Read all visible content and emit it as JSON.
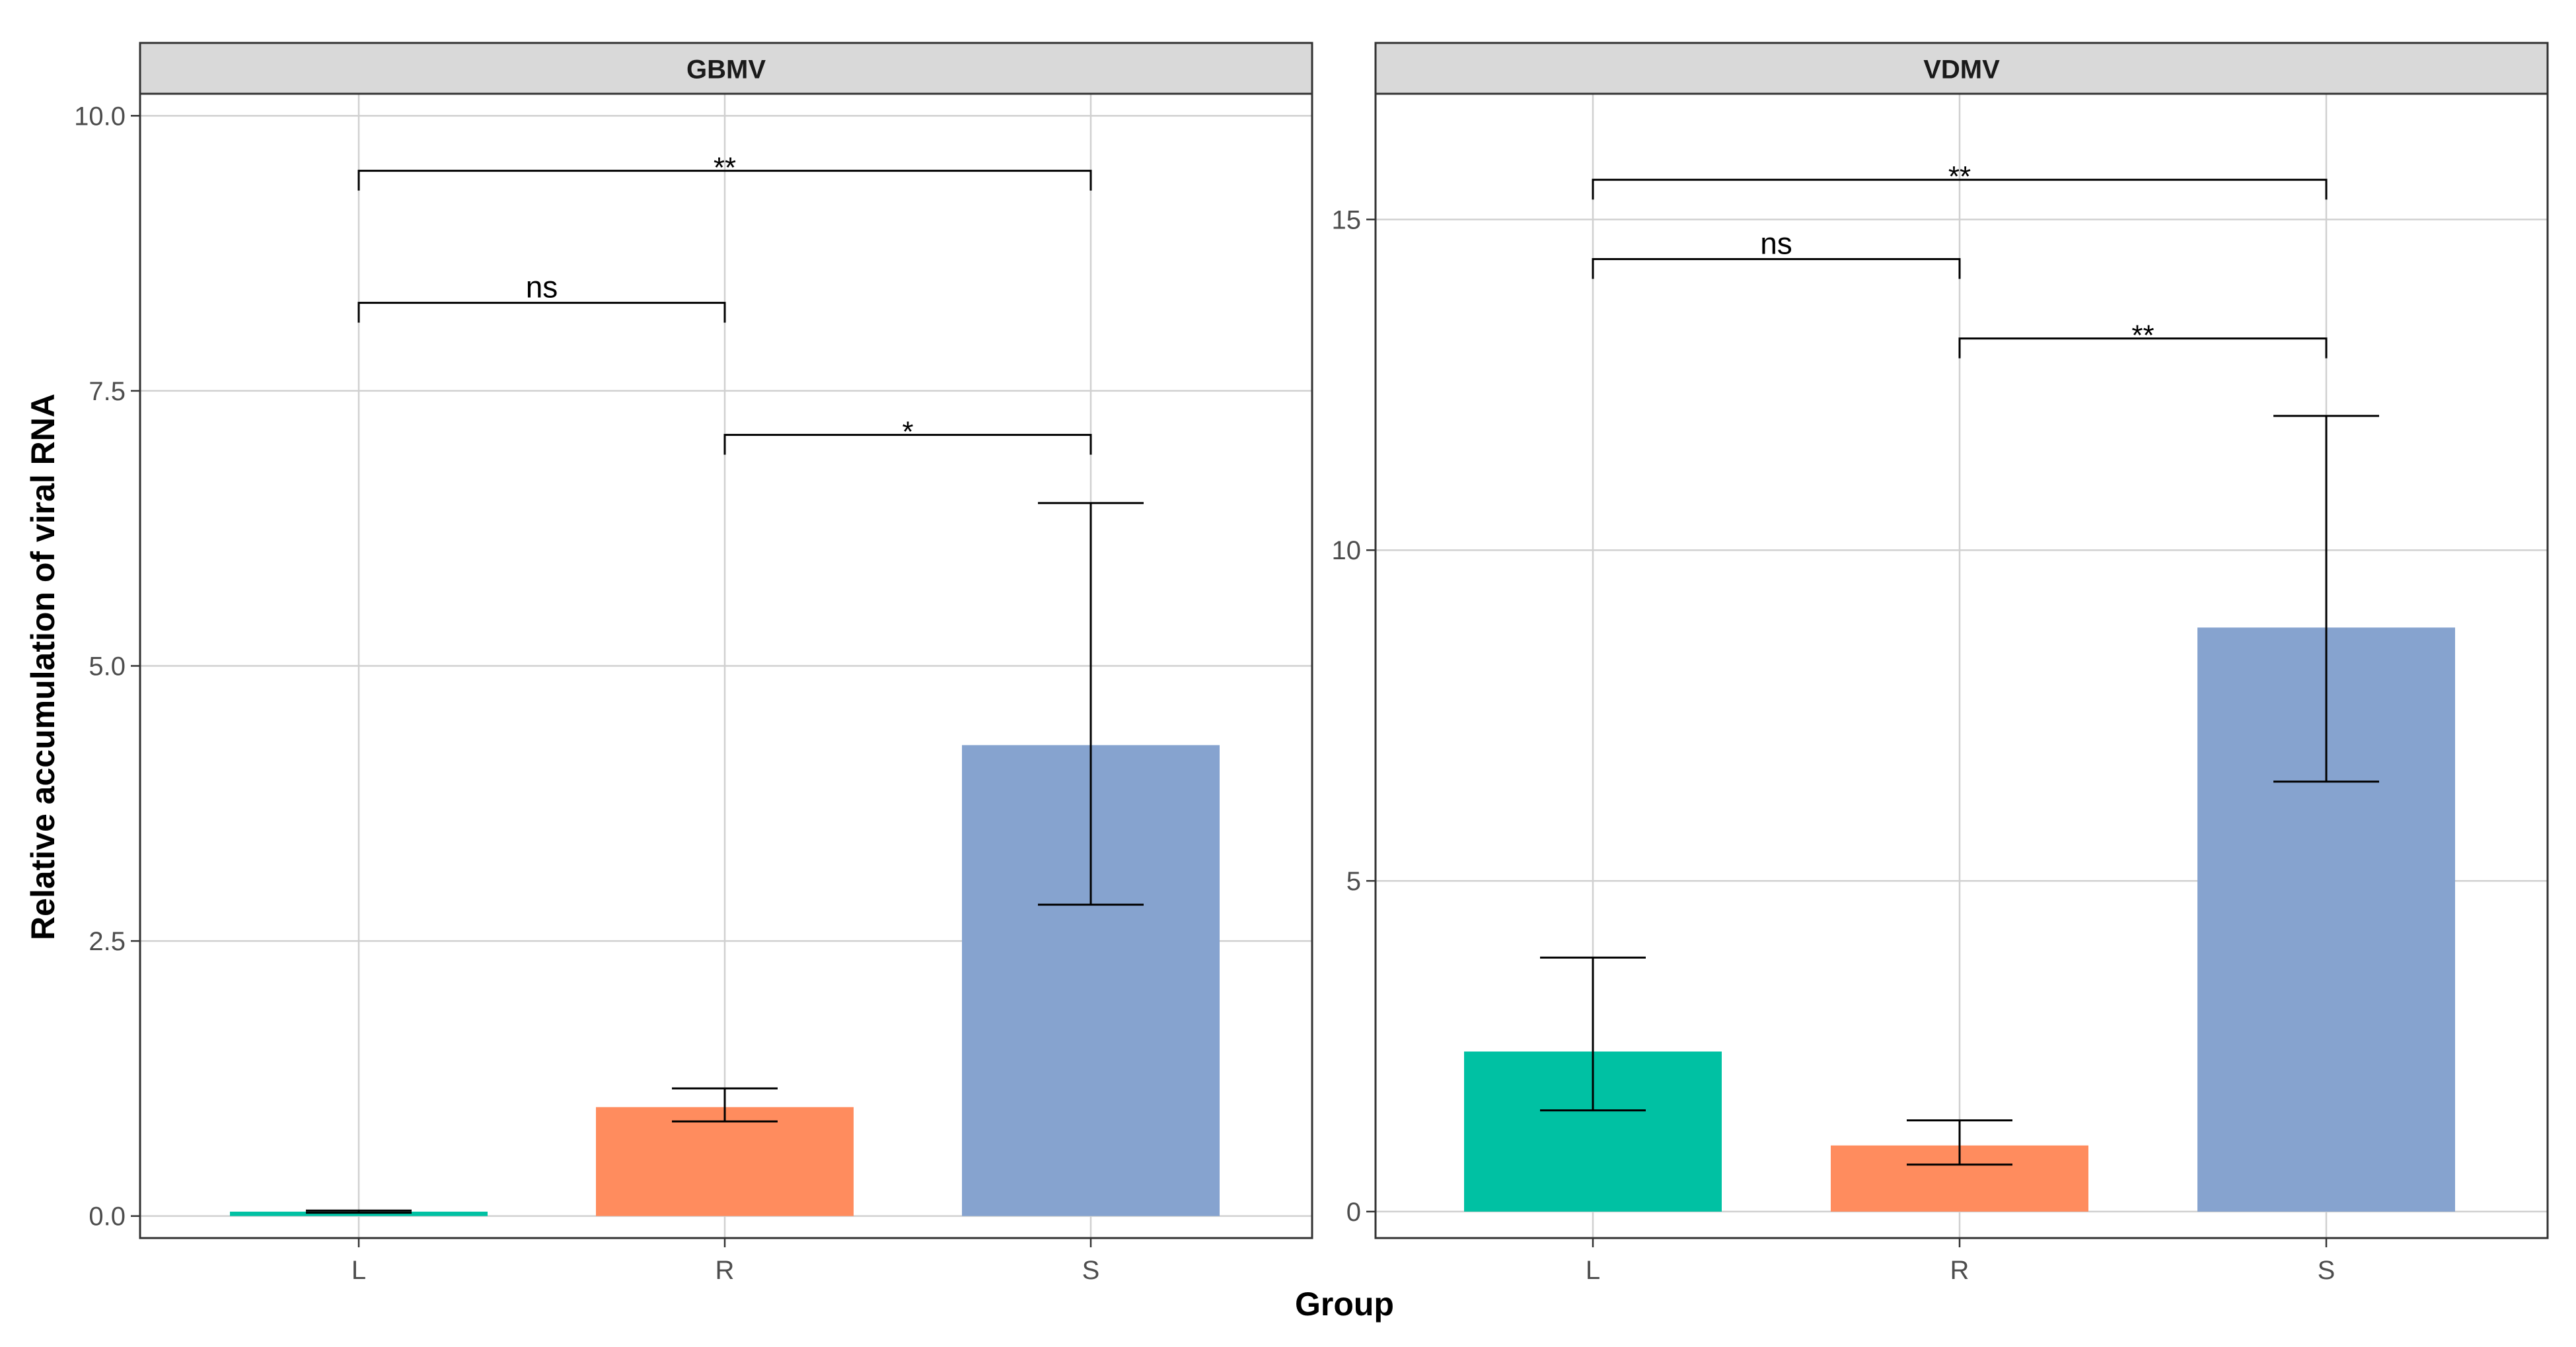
{
  "chart_data": {
    "type": "bar",
    "ylabel": "Relative accumulation of viral RNA",
    "xlabel": "Group",
    "colors": {
      "L": "#00C1A3",
      "R": "#FF8C5E",
      "S": "#86A3CF"
    },
    "panels": [
      {
        "title": "GBMV",
        "categories": [
          "L",
          "R",
          "S"
        ],
        "values": [
          0.04,
          0.99,
          4.28
        ],
        "error_low": [
          0.03,
          0.86,
          2.83
        ],
        "error_high": [
          0.05,
          1.16,
          6.48
        ],
        "ylim": [
          -0.2,
          10.2
        ],
        "yticks": [
          0.0,
          2.5,
          5.0,
          7.5,
          10.0
        ],
        "ytick_labels": [
          "0.0",
          "2.5",
          "5.0",
          "7.5",
          "10.0"
        ],
        "comparisons": [
          {
            "from": "L",
            "to": "R",
            "y": 8.3,
            "label": "ns"
          },
          {
            "from": "R",
            "to": "S",
            "y": 7.1,
            "label": "*"
          },
          {
            "from": "L",
            "to": "S",
            "y": 9.5,
            "label": "**"
          }
        ]
      },
      {
        "title": "VDMV",
        "categories": [
          "L",
          "R",
          "S"
        ],
        "values": [
          2.42,
          1.0,
          8.83
        ],
        "error_low": [
          1.53,
          0.71,
          6.5
        ],
        "error_high": [
          3.84,
          1.38,
          12.03
        ],
        "ylim": [
          -0.4,
          16.9
        ],
        "yticks": [
          0,
          5,
          10,
          15
        ],
        "ytick_labels": [
          "0",
          "5",
          "10",
          "15"
        ],
        "comparisons": [
          {
            "from": "L",
            "to": "R",
            "y": 14.4,
            "label": "ns"
          },
          {
            "from": "R",
            "to": "S",
            "y": 13.2,
            "label": "**"
          },
          {
            "from": "L",
            "to": "S",
            "y": 15.6,
            "label": "**"
          }
        ]
      }
    ]
  }
}
